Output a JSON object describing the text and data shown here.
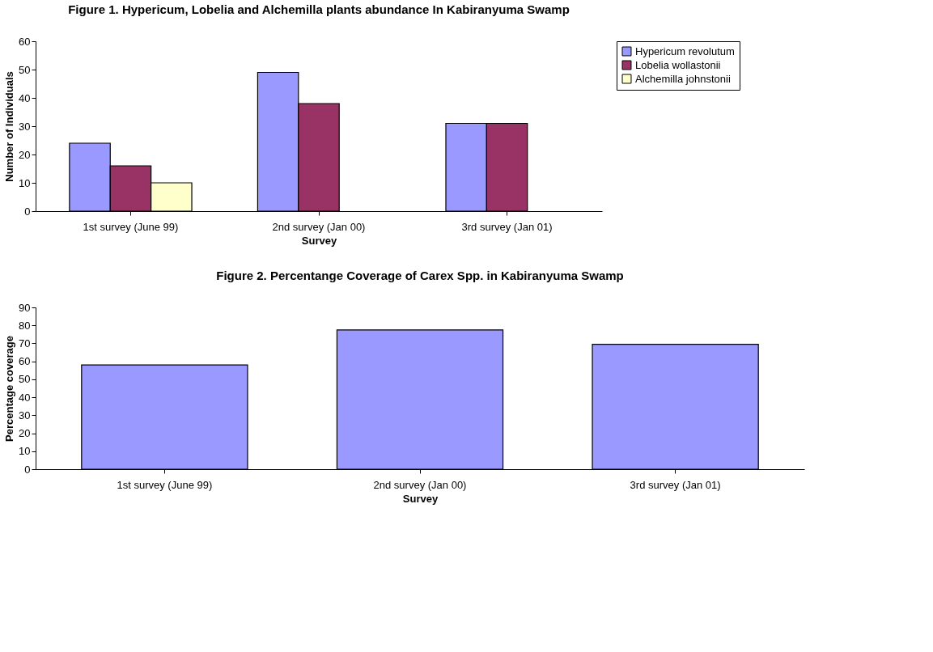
{
  "chart_data": [
    {
      "type": "bar",
      "title": "Figure 1. Hypericum, Lobelia and Alchemilla plants abundance In Kabiranyuma Swamp",
      "xlabel": "Survey",
      "ylabel": "Number of Individuals",
      "categories": [
        "1st survey (June 99)",
        "2nd survey (Jan 00)",
        "3rd survey (Jan 01)"
      ],
      "series": [
        {
          "name": "Hypericum revolutum",
          "color": "#9999ff",
          "values": [
            24,
            49,
            31
          ]
        },
        {
          "name": "Lobelia wollastonii",
          "color": "#993366",
          "values": [
            16,
            38,
            31
          ]
        },
        {
          "name": "Alchemilla johnstonii",
          "color": "#ffffcc",
          "values": [
            10,
            null,
            null
          ]
        }
      ],
      "ylim": [
        0,
        60
      ],
      "yticks": [
        0,
        10,
        20,
        30,
        40,
        50,
        60
      ],
      "legend": "right",
      "grid": false
    },
    {
      "type": "bar",
      "title": "Figure 2. Percentange Coverage of Carex Spp. in Kabiranyuma Swamp",
      "xlabel": "Survey",
      "ylabel": "Percentage coverage",
      "categories": [
        "1st survey (June 99)",
        "2nd survey (Jan 00)",
        "3rd survey (Jan 01)"
      ],
      "series": [
        {
          "color": "#9999ff",
          "values": [
            58,
            77.5,
            69.5
          ]
        }
      ],
      "ylim": [
        0,
        90
      ],
      "yticks": [
        0,
        10,
        20,
        30,
        40,
        50,
        60,
        70,
        80,
        90
      ],
      "grid": false
    }
  ]
}
